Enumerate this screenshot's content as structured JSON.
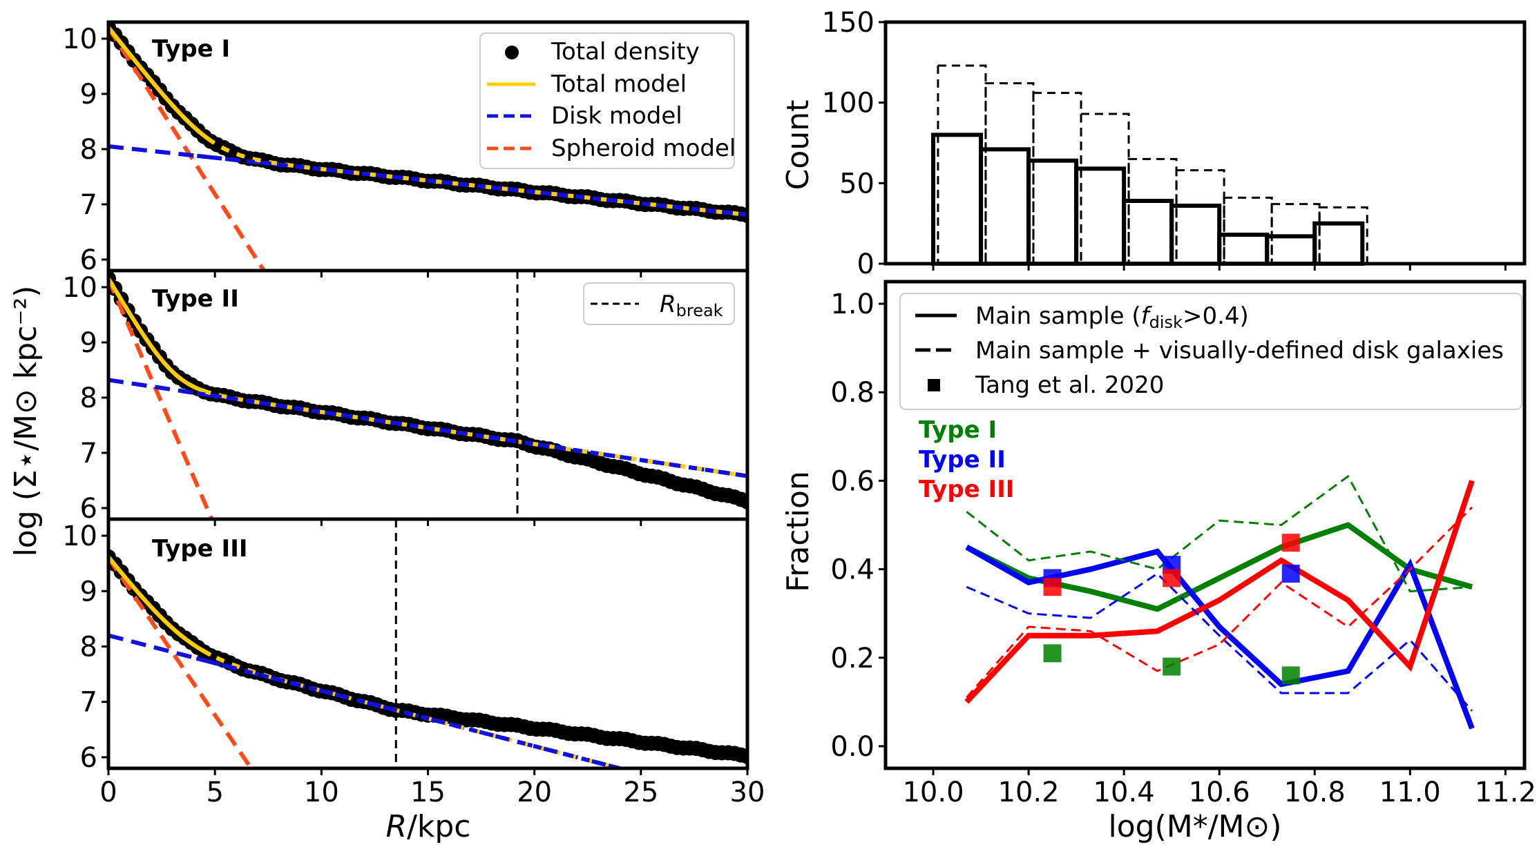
{
  "chart_data": [
    {
      "panel": "left-top",
      "type": "line",
      "title": "Type I",
      "xlim": [
        0,
        30
      ],
      "ylim": [
        5.8,
        10.3
      ],
      "xticks": [
        0,
        5,
        10,
        15,
        20,
        25,
        30
      ],
      "yticks": [
        6,
        7,
        8,
        9,
        10
      ],
      "xlabel": "",
      "ylabel": "",
      "bulge": {
        "mu0": 10.2,
        "re": 1.0,
        "n": 1.0
      },
      "disk": {
        "mu0": 8.05,
        "slope": -0.0413,
        "break_r": null,
        "slope_out": null
      },
      "total_density": {
        "r_max": 30,
        "r_step": 0.3,
        "outer_slope": null
      },
      "spheroid_line": {
        "x": [
          0,
          7.3
        ],
        "y": [
          10.2,
          5.8
        ]
      },
      "r_break": null,
      "legend": [
        "Total density",
        "Total model",
        "Disk model",
        "Spheroid model"
      ]
    },
    {
      "panel": "left-middle",
      "type": "line",
      "title": "Type II",
      "xlim": [
        0,
        30
      ],
      "ylim": [
        5.8,
        10.3
      ],
      "xticks": [
        0,
        5,
        10,
        15,
        20,
        25,
        30
      ],
      "yticks": [
        6,
        7,
        8,
        9,
        10
      ],
      "bulge": {
        "mu0": 10.15,
        "re": 0.75,
        "n": 1.0
      },
      "disk": {
        "mu0": 8.32,
        "slope": -0.058
      },
      "total_density": {
        "r_max": 30,
        "r_step": 0.3,
        "break_r": 19.2,
        "outer_slope": -0.1
      },
      "spheroid_line": {
        "x": [
          0,
          4.85
        ],
        "y": [
          10.15,
          5.8
        ]
      },
      "r_break": 19.2,
      "legend": [
        "R_break"
      ]
    },
    {
      "panel": "left-bottom",
      "type": "line",
      "title": "Type III",
      "xlim": [
        0,
        30
      ],
      "ylim": [
        5.8,
        10.3
      ],
      "xticks": [
        0,
        5,
        10,
        15,
        20,
        25,
        30
      ],
      "yticks": [
        6,
        7,
        8,
        9,
        10
      ],
      "xlabel_italic": "R",
      "xlabel_rest": "/kpc",
      "bulge": {
        "mu0": 9.6,
        "re": 1.0,
        "n": 1.0
      },
      "disk": {
        "mu0": 8.2,
        "slope": -0.1
      },
      "total_density": {
        "r_max": 30,
        "r_step": 0.3,
        "break_r": 13.5,
        "outer_slope": -0.05
      },
      "spheroid_line": {
        "x": [
          0,
          6.7
        ],
        "y": [
          9.6,
          5.8
        ]
      },
      "r_break": 13.5
    },
    {
      "panel": "right-top",
      "type": "bar",
      "ylabel": "Count",
      "ylim": [
        0,
        150
      ],
      "yticks": [
        0,
        50,
        100,
        150
      ],
      "xlim": [
        9.9,
        11.24
      ],
      "bins_solid": {
        "edges": [
          10.0,
          10.1,
          10.2,
          10.3,
          10.4,
          10.5,
          10.6,
          10.7,
          10.8,
          10.9,
          11.0,
          11.1
        ],
        "counts": [
          80,
          71,
          64,
          59,
          39,
          36,
          18,
          17,
          25,
          0,
          0
        ]
      },
      "bins_dashed": {
        "edges": [
          10.01,
          10.11,
          10.21,
          10.31,
          10.41,
          10.51,
          10.61,
          10.71,
          10.81,
          10.91,
          11.01,
          11.11
        ],
        "counts": [
          123,
          112,
          106,
          93,
          65,
          58,
          41,
          37,
          35,
          0,
          0
        ]
      }
    },
    {
      "panel": "right-bottom",
      "type": "line",
      "ylabel": "Fraction",
      "ylim": [
        -0.05,
        1.05
      ],
      "xlim": [
        9.9,
        11.24
      ],
      "xticks": [
        10.0,
        10.2,
        10.4,
        10.6,
        10.8,
        11.0,
        11.2
      ],
      "yticks": [
        0.0,
        0.2,
        0.4,
        0.6,
        0.8,
        1.0
      ],
      "xlabel": "log(M*/M⊙)",
      "x": [
        10.07,
        10.2,
        10.33,
        10.47,
        10.6,
        10.73,
        10.87,
        11.0,
        11.13
      ],
      "series": [
        {
          "name": "Type I",
          "color": "#008000",
          "style": "solid",
          "values": [
            0.45,
            0.38,
            0.35,
            0.31,
            0.38,
            0.45,
            0.5,
            0.4,
            0.36
          ]
        },
        {
          "name": "Type II",
          "color": "#0000ff",
          "style": "solid",
          "values": [
            0.45,
            0.37,
            0.4,
            0.44,
            0.27,
            0.14,
            0.17,
            0.41,
            0.04
          ]
        },
        {
          "name": "Type III",
          "color": "#ff0000",
          "style": "solid",
          "values": [
            0.1,
            0.25,
            0.25,
            0.26,
            0.33,
            0.42,
            0.33,
            0.18,
            0.6
          ]
        },
        {
          "name": "Type I",
          "color": "#008000",
          "style": "dashed",
          "values": [
            0.53,
            0.42,
            0.44,
            0.4,
            0.51,
            0.5,
            0.61,
            0.35,
            0.36
          ]
        },
        {
          "name": "Type II",
          "color": "#0000ff",
          "style": "dashed",
          "values": [
            0.36,
            0.3,
            0.29,
            0.39,
            0.25,
            0.12,
            0.12,
            0.24,
            0.08
          ]
        },
        {
          "name": "Type III",
          "color": "#ff0000",
          "style": "dashed",
          "values": [
            0.11,
            0.27,
            0.26,
            0.17,
            0.23,
            0.37,
            0.27,
            0.4,
            0.54
          ]
        }
      ],
      "tang2020": [
        {
          "name": "Type I",
          "color": "#008000",
          "x": [
            10.25,
            10.5,
            10.75
          ],
          "values": [
            0.21,
            0.18,
            0.16
          ]
        },
        {
          "name": "Type II",
          "color": "#0000ff",
          "x": [
            10.25,
            10.5,
            10.75
          ],
          "values": [
            0.38,
            0.41,
            0.39
          ]
        },
        {
          "name": "Type III",
          "color": "#ff0000",
          "x": [
            10.25,
            10.5,
            10.75
          ],
          "values": [
            0.36,
            0.38,
            0.46
          ]
        }
      ]
    }
  ],
  "labels": {
    "type1": "Type I",
    "type2": "Type II",
    "type3": "Type III",
    "ylabel_left": "log (Σ⋆/M⊙ kpc⁻²)",
    "x_left_italic": "R",
    "x_left_rest": "/kpc",
    "count": "Count",
    "fraction": "Fraction",
    "x_right": "log(M*/M⊙)"
  },
  "legend_left": {
    "total_density": "Total density",
    "total_model": "Total model",
    "disk_model": "Disk model",
    "spheroid_model": "Spheroid model"
  },
  "legend_break": {
    "r": "R",
    "sub": "break"
  },
  "legend_right": {
    "main_sample_prefix": "Main sample (",
    "main_sample_f": "f",
    "main_sample_sub": "disk",
    "main_sample_suffix": ">0.4)",
    "main_plus_visual": "Main sample + visually-defined disk galaxies",
    "tang": "Tang et al. 2020"
  },
  "type_labels_right": [
    {
      "text": "Type I",
      "color": "#008000"
    },
    {
      "text": "Type II",
      "color": "#0000ff"
    },
    {
      "text": "Type III",
      "color": "#ff0000"
    }
  ],
  "colors": {
    "total_model": "#ffcc00",
    "disk_model": "#1010e0",
    "spheroid_model": "#ff4a1a",
    "data": "#000000"
  }
}
